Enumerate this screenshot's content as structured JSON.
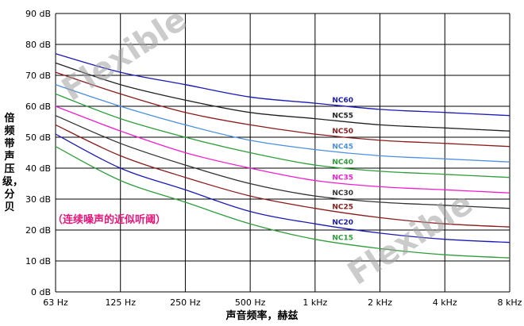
{
  "chart_data": {
    "type": "line",
    "ylabel": "倍频带声压级，分贝",
    "xlabel": "声音频率，赫兹",
    "note": "（连续噪声的近似听阈）",
    "watermark": "Flexible",
    "x": [
      "63 Hz",
      "125 Hz",
      "250 Hz",
      "500 Hz",
      "1 kHz",
      "2 kHz",
      "4 kHz",
      "8 kHz"
    ],
    "ylim": [
      0,
      90
    ],
    "yticks": [
      "0 dB",
      "10 dB",
      "20 dB",
      "30 dB",
      "40 dB",
      "50 dB",
      "60 dB",
      "70 dB",
      "80 dB",
      "90 dB"
    ],
    "grid": true,
    "series": [
      {
        "name": "NC60",
        "color": "#1a1ab5",
        "values": [
          77,
          71,
          67,
          63,
          61,
          59,
          58,
          57
        ]
      },
      {
        "name": "NC55",
        "color": "#222222",
        "values": [
          74,
          67,
          62,
          58,
          56,
          54,
          53,
          52
        ]
      },
      {
        "name": "NC50",
        "color": "#8b1a1a",
        "values": [
          71,
          64,
          58,
          54,
          51,
          49,
          48,
          47
        ]
      },
      {
        "name": "NC45",
        "color": "#4a8fe0",
        "values": [
          67,
          60,
          54,
          49,
          46,
          44,
          43,
          42
        ]
      },
      {
        "name": "NC40",
        "color": "#2e9e3a",
        "values": [
          64,
          56,
          50,
          45,
          41,
          39,
          38,
          37
        ]
      },
      {
        "name": "NC35",
        "color": "#f01ecf",
        "values": [
          60,
          52,
          45,
          40,
          36,
          34,
          33,
          32
        ]
      },
      {
        "name": "NC30",
        "color": "#333333",
        "values": [
          57,
          48,
          41,
          35,
          31,
          29,
          28,
          27
        ]
      },
      {
        "name": "NC25",
        "color": "#8b1a1a",
        "values": [
          54,
          44,
          37,
          31,
          27,
          24,
          22,
          21
        ]
      },
      {
        "name": "NC20",
        "color": "#1a1ab5",
        "values": [
          51,
          40,
          33,
          26,
          22,
          19,
          17,
          16
        ]
      },
      {
        "name": "NC15",
        "color": "#2e9e3a",
        "values": [
          47,
          36,
          29,
          22,
          17,
          14,
          12,
          11
        ]
      }
    ]
  }
}
